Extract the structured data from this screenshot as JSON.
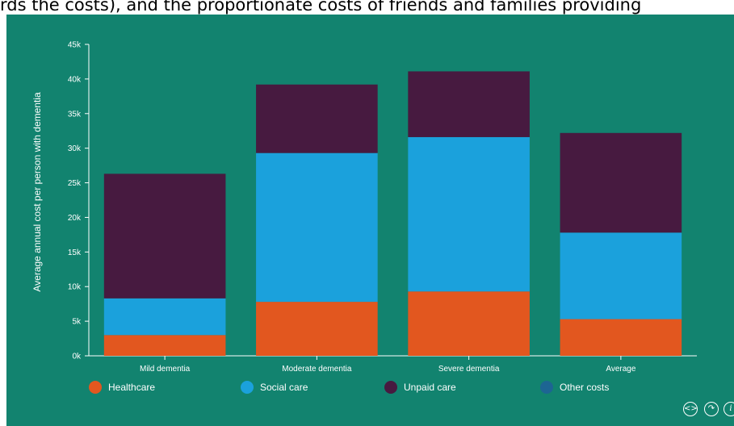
{
  "header": {
    "text": "rds the costs), and the proportionate costs of friends and families providing"
  },
  "colors": {
    "background": "#12836f",
    "healthcare": "#e2571f",
    "social_care": "#1ba1dc",
    "unpaid_care": "#471a40",
    "other_costs": "#1d6593"
  },
  "chart_data": {
    "type": "bar",
    "stacked": true,
    "categories": [
      "Mild dementia",
      "Moderate dementia",
      "Severe dementia",
      "Average"
    ],
    "series": [
      {
        "name": "Healthcare",
        "color": "#e2571f",
        "values": [
          3000,
          7800,
          9300,
          5300
        ]
      },
      {
        "name": "Social care",
        "color": "#1ba1dc",
        "values": [
          5300,
          21500,
          22300,
          12500
        ]
      },
      {
        "name": "Unpaid care",
        "color": "#471a40",
        "values": [
          18000,
          9900,
          9500,
          14400
        ]
      },
      {
        "name": "Other costs",
        "color": "#1d6593",
        "values": [
          0,
          0,
          0,
          0
        ]
      }
    ],
    "ylabel": "Average annual cost per person with dementia",
    "ylim": [
      0,
      45000
    ],
    "yticks": [
      0,
      5000,
      10000,
      15000,
      20000,
      25000,
      30000,
      35000,
      40000,
      45000
    ],
    "ytick_labels": [
      "0k",
      "5k",
      "10k",
      "15k",
      "20k",
      "25k",
      "30k",
      "35k",
      "40k",
      "45k"
    ],
    "legend_position": "bottom"
  },
  "icons": {
    "embed": "code-icon",
    "share": "share-icon",
    "info": "info-icon"
  }
}
